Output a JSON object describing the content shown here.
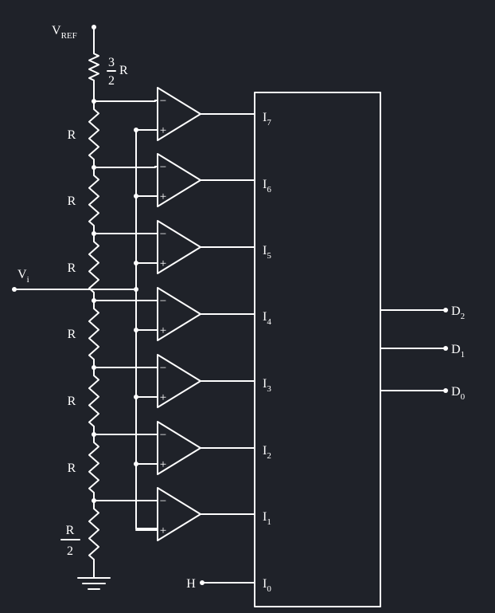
{
  "diagram": {
    "vref": {
      "main": "V",
      "sub": "REF"
    },
    "vin": {
      "main": "V",
      "sub": "i"
    },
    "top_resistor": {
      "num": "3",
      "den": "2",
      "unit": "R"
    },
    "mid_resistor_label": "R",
    "bottom_resistor": {
      "num": "R",
      "den": "2"
    },
    "comparator_minus": "−",
    "comparator_plus": "+",
    "encoder_inputs": [
      {
        "main": "I",
        "sub": "7"
      },
      {
        "main": "I",
        "sub": "6"
      },
      {
        "main": "I",
        "sub": "5"
      },
      {
        "main": "I",
        "sub": "4"
      },
      {
        "main": "I",
        "sub": "3"
      },
      {
        "main": "I",
        "sub": "2"
      },
      {
        "main": "I",
        "sub": "1"
      },
      {
        "main": "I",
        "sub": "0"
      }
    ],
    "h_label": "H",
    "outputs": [
      {
        "main": "D",
        "sub": "2"
      },
      {
        "main": "D",
        "sub": "1"
      },
      {
        "main": "D",
        "sub": "0"
      }
    ],
    "colors": {
      "background": "#1f2229",
      "wire": "#ffffff"
    }
  }
}
